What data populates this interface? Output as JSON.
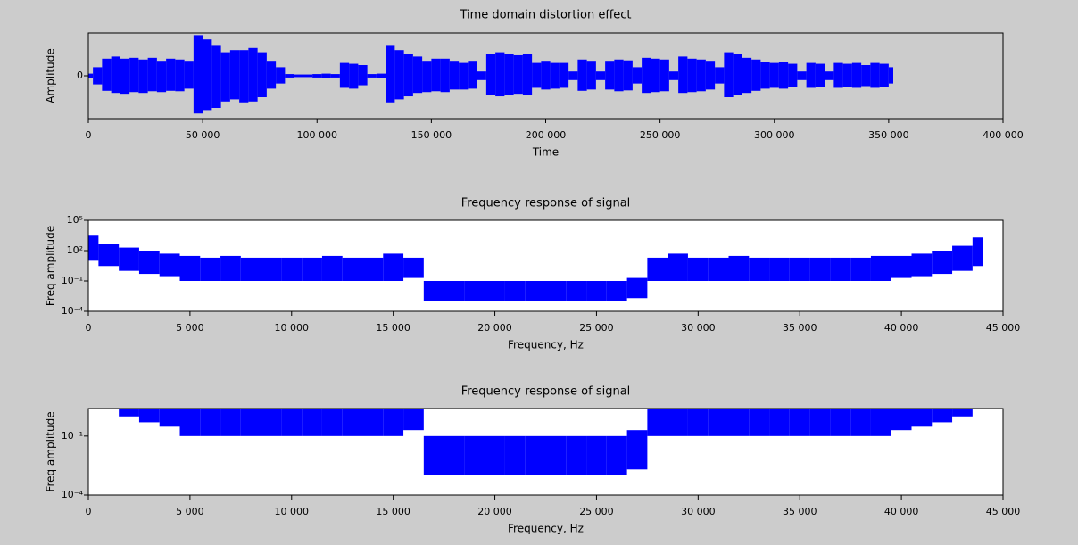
{
  "chart_data": [
    {
      "type": "line",
      "title": "Time domain distortion effect",
      "x_label": "Time",
      "y_label": "Amplitude",
      "color": "#0000ff",
      "background": "#cccccc",
      "log_y": false,
      "xlim": [
        0,
        400000
      ],
      "ylim": [
        -1,
        1
      ],
      "xticks": [
        0,
        {
          "value": 50000,
          "label": "50 000"
        },
        {
          "value": 100000,
          "label": "100 000"
        },
        {
          "value": 150000,
          "label": "150 000"
        },
        {
          "value": 200000,
          "label": "200 000"
        },
        {
          "value": 250000,
          "label": "250 000"
        },
        {
          "value": 300000,
          "label": "300 000"
        },
        {
          "value": 350000,
          "label": "350 000"
        },
        {
          "value": 400000,
          "label": "400 000"
        }
      ],
      "yticks": [
        0
      ],
      "x": [
        0,
        4000,
        8000,
        12000,
        16000,
        20000,
        24000,
        28000,
        32000,
        36000,
        40000,
        44000,
        48000,
        52000,
        56000,
        60000,
        64000,
        68000,
        72000,
        76000,
        80000,
        84000,
        88000,
        92000,
        96000,
        100000,
        104000,
        108000,
        112000,
        116000,
        120000,
        124000,
        128000,
        132000,
        136000,
        140000,
        144000,
        148000,
        152000,
        156000,
        160000,
        164000,
        168000,
        172000,
        176000,
        180000,
        184000,
        188000,
        192000,
        196000,
        200000,
        204000,
        208000,
        212000,
        216000,
        220000,
        224000,
        228000,
        232000,
        236000,
        240000,
        244000,
        248000,
        252000,
        256000,
        260000,
        264000,
        268000,
        272000,
        276000,
        280000,
        284000,
        288000,
        292000,
        296000,
        300000,
        304000,
        308000,
        312000,
        316000,
        320000,
        324000,
        328000,
        332000,
        336000,
        340000,
        344000,
        348000,
        352000
      ],
      "upper": [
        0.05,
        0.2,
        0.4,
        0.45,
        0.4,
        0.42,
        0.38,
        0.42,
        0.35,
        0.4,
        0.38,
        0.35,
        0.95,
        0.85,
        0.7,
        0.55,
        0.6,
        0.6,
        0.65,
        0.55,
        0.35,
        0.2,
        0.04,
        0.03,
        0.03,
        0.04,
        0.05,
        0.04,
        0.3,
        0.28,
        0.25,
        0.04,
        0.05,
        0.7,
        0.6,
        0.5,
        0.45,
        0.35,
        0.4,
        0.4,
        0.35,
        0.3,
        0.35,
        0.1,
        0.5,
        0.55,
        0.5,
        0.48,
        0.5,
        0.3,
        0.35,
        0.3,
        0.3,
        0.1,
        0.38,
        0.35,
        0.1,
        0.35,
        0.38,
        0.36,
        0.2,
        0.42,
        0.4,
        0.38,
        0.1,
        0.45,
        0.4,
        0.38,
        0.35,
        0.2,
        0.55,
        0.5,
        0.42,
        0.38,
        0.32,
        0.3,
        0.32,
        0.28,
        0.1,
        0.3,
        0.28,
        0.1,
        0.3,
        0.28,
        0.3,
        0.25,
        0.3,
        0.28,
        0.2
      ],
      "lower": [
        -0.05,
        -0.2,
        -0.35,
        -0.4,
        -0.42,
        -0.38,
        -0.4,
        -0.36,
        -0.38,
        -0.35,
        -0.36,
        -0.3,
        -0.88,
        -0.8,
        -0.75,
        -0.6,
        -0.55,
        -0.62,
        -0.6,
        -0.5,
        -0.3,
        -0.18,
        -0.04,
        -0.03,
        -0.03,
        -0.04,
        -0.05,
        -0.04,
        -0.28,
        -0.3,
        -0.22,
        -0.04,
        -0.05,
        -0.62,
        -0.55,
        -0.48,
        -0.4,
        -0.38,
        -0.36,
        -0.38,
        -0.32,
        -0.32,
        -0.3,
        -0.1,
        -0.45,
        -0.48,
        -0.45,
        -0.42,
        -0.45,
        -0.28,
        -0.32,
        -0.3,
        -0.28,
        -0.1,
        -0.35,
        -0.32,
        -0.1,
        -0.32,
        -0.36,
        -0.34,
        -0.18,
        -0.4,
        -0.38,
        -0.36,
        -0.1,
        -0.4,
        -0.38,
        -0.36,
        -0.32,
        -0.18,
        -0.5,
        -0.45,
        -0.4,
        -0.35,
        -0.3,
        -0.28,
        -0.3,
        -0.26,
        -0.1,
        -0.28,
        -0.26,
        -0.1,
        -0.28,
        -0.26,
        -0.28,
        -0.24,
        -0.28,
        -0.26,
        -0.18
      ]
    },
    {
      "type": "line",
      "title": "Frequency response of signal",
      "x_label": "Frequency, Hz",
      "y_label": "Freq amplitude",
      "color": "#0000ff",
      "background": "#ffffff",
      "log_y": true,
      "xlim": [
        0,
        45000
      ],
      "ylim": [
        0.0001,
        100000
      ],
      "xticks": [
        0,
        {
          "value": 5000,
          "label": "5 000"
        },
        {
          "value": 10000,
          "label": "10 000"
        },
        {
          "value": 15000,
          "label": "15 000"
        },
        {
          "value": 20000,
          "label": "20 000"
        },
        {
          "value": 25000,
          "label": "25 000"
        },
        {
          "value": 30000,
          "label": "30 000"
        },
        {
          "value": 35000,
          "label": "35 000"
        },
        {
          "value": 40000,
          "label": "40 000"
        },
        {
          "value": 45000,
          "label": "45 000"
        }
      ],
      "yticks": [
        {
          "value": 0.0001,
          "label": "10⁻⁴"
        },
        {
          "value": 0.1,
          "label": "10⁻¹"
        },
        {
          "value": 100,
          "label": "10²"
        },
        {
          "value": 100000,
          "label": "10⁵"
        }
      ],
      "x": [
        0,
        1000,
        2000,
        3000,
        4000,
        5000,
        6000,
        7000,
        8000,
        9000,
        10000,
        11000,
        12000,
        13000,
        14000,
        15000,
        16000,
        17000,
        18000,
        19000,
        20000,
        21000,
        22000,
        23000,
        24000,
        25000,
        26000,
        27000,
        28000,
        29000,
        30000,
        31000,
        32000,
        33000,
        34000,
        35000,
        36000,
        37000,
        38000,
        39000,
        40000,
        41000,
        42000,
        43000,
        44000
      ],
      "upper": [
        3000,
        500,
        200,
        100,
        50,
        30,
        20,
        30,
        20,
        20,
        20,
        20,
        30,
        20,
        20,
        50,
        20,
        0.1,
        0.1,
        0.1,
        0.1,
        0.1,
        0.1,
        0.1,
        0.1,
        0.1,
        0.1,
        0.2,
        20,
        50,
        20,
        20,
        30,
        20,
        20,
        20,
        20,
        20,
        20,
        30,
        30,
        50,
        100,
        300,
        2000
      ],
      "lower": [
        10,
        3,
        1,
        0.5,
        0.3,
        0.1,
        0.1,
        0.1,
        0.1,
        0.1,
        0.1,
        0.1,
        0.1,
        0.1,
        0.1,
        0.1,
        0.2,
        0.001,
        0.001,
        0.001,
        0.001,
        0.001,
        0.001,
        0.001,
        0.001,
        0.001,
        0.001,
        0.002,
        0.1,
        0.1,
        0.1,
        0.1,
        0.1,
        0.1,
        0.1,
        0.1,
        0.1,
        0.1,
        0.1,
        0.1,
        0.2,
        0.3,
        0.5,
        1,
        3
      ]
    },
    {
      "type": "line",
      "title": "Frequency response of signal",
      "x_label": "Frequency, Hz",
      "y_label": "Freq amplitude",
      "color": "#0000ff",
      "background": "#ffffff",
      "log_y": true,
      "xlim": [
        0,
        45000
      ],
      "ylim": [
        0.0001,
        2.5
      ],
      "xticks": [
        0,
        {
          "value": 5000,
          "label": "5 000"
        },
        {
          "value": 10000,
          "label": "10 000"
        },
        {
          "value": 15000,
          "label": "15 000"
        },
        {
          "value": 20000,
          "label": "20 000"
        },
        {
          "value": 25000,
          "label": "25 000"
        },
        {
          "value": 30000,
          "label": "30 000"
        },
        {
          "value": 35000,
          "label": "35 000"
        },
        {
          "value": 40000,
          "label": "40 000"
        },
        {
          "value": 45000,
          "label": "45 000"
        }
      ],
      "yticks": [
        {
          "value": 0.0001,
          "label": "10⁻⁴"
        },
        {
          "value": 0.1,
          "label": "10⁻¹"
        }
      ],
      "x": [
        0,
        1000,
        2000,
        3000,
        4000,
        5000,
        6000,
        7000,
        8000,
        9000,
        10000,
        11000,
        12000,
        13000,
        14000,
        15000,
        16000,
        17000,
        18000,
        19000,
        20000,
        21000,
        22000,
        23000,
        24000,
        25000,
        26000,
        27000,
        28000,
        29000,
        30000,
        31000,
        32000,
        33000,
        34000,
        35000,
        36000,
        37000,
        38000,
        39000,
        40000,
        41000,
        42000,
        43000,
        44000
      ],
      "upper": [
        3000,
        500,
        200,
        100,
        50,
        30,
        20,
        30,
        20,
        20,
        20,
        20,
        30,
        20,
        20,
        50,
        20,
        0.1,
        0.1,
        0.1,
        0.1,
        0.1,
        0.1,
        0.1,
        0.1,
        0.1,
        0.1,
        0.2,
        20,
        50,
        20,
        20,
        30,
        20,
        20,
        20,
        20,
        20,
        20,
        30,
        30,
        50,
        100,
        300,
        2000
      ],
      "lower": [
        10,
        3,
        1,
        0.5,
        0.3,
        0.1,
        0.1,
        0.1,
        0.1,
        0.1,
        0.1,
        0.1,
        0.1,
        0.1,
        0.1,
        0.1,
        0.2,
        0.001,
        0.001,
        0.001,
        0.001,
        0.001,
        0.001,
        0.001,
        0.001,
        0.001,
        0.001,
        0.002,
        0.1,
        0.1,
        0.1,
        0.1,
        0.1,
        0.1,
        0.1,
        0.1,
        0.1,
        0.1,
        0.1,
        0.1,
        0.2,
        0.3,
        0.5,
        1,
        3
      ]
    }
  ]
}
